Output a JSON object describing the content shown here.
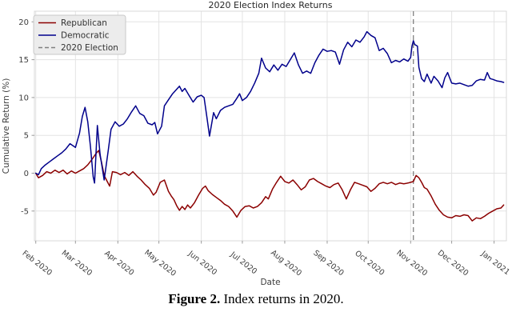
{
  "figure": {
    "caption_label": "Figure 2.",
    "caption_text": " Index returns in 2020."
  },
  "chart_data": {
    "type": "line",
    "title": "2020 Election Index Returns",
    "xlabel": "Date",
    "ylabel": "Cumulative Return (%)",
    "ylim": [
      -8.9,
      21.4
    ],
    "yticks": [
      20,
      15,
      10,
      5,
      0,
      -5
    ],
    "grid": true,
    "legend_position": "upper-left",
    "colors": {
      "republican": "#8B0000",
      "democratic": "#00008B",
      "election_line": "#808080",
      "gridline": "#e3e3e3",
      "axis_text": "#3d3d3d"
    },
    "xticks": [
      {
        "label": "Feb 2020",
        "date": "2020-02-01"
      },
      {
        "label": "Mar 2020",
        "date": "2020-03-01"
      },
      {
        "label": "Apr 2020",
        "date": "2020-04-01"
      },
      {
        "label": "May 2020",
        "date": "2020-05-01"
      },
      {
        "label": "Jun 2020",
        "date": "2020-06-01"
      },
      {
        "label": "Jul 2020",
        "date": "2020-07-01"
      },
      {
        "label": "Aug 2020",
        "date": "2020-08-01"
      },
      {
        "label": "Sep 2020",
        "date": "2020-09-01"
      },
      {
        "label": "Oct 2020",
        "date": "2020-10-01"
      },
      {
        "label": "Nov 2020",
        "date": "2020-11-01"
      },
      {
        "label": "Dec 2020",
        "date": "2020-12-01"
      },
      {
        "label": "Jan 2021",
        "date": "2021-01-01"
      }
    ],
    "election_line": {
      "label": "2020 Election",
      "date": "2020-11-03",
      "style": "dashed"
    },
    "series": [
      {
        "name": "Republican",
        "color": "#8B0000",
        "points": [
          [
            "2020-02-01",
            0.0
          ],
          [
            "2020-02-03",
            -0.6
          ],
          [
            "2020-02-06",
            -0.3
          ],
          [
            "2020-02-09",
            0.2
          ],
          [
            "2020-02-12",
            0.0
          ],
          [
            "2020-02-15",
            0.4
          ],
          [
            "2020-02-18",
            0.1
          ],
          [
            "2020-02-21",
            0.4
          ],
          [
            "2020-02-24",
            -0.1
          ],
          [
            "2020-02-27",
            0.3
          ],
          [
            "2020-03-01",
            0.0
          ],
          [
            "2020-03-04",
            0.3
          ],
          [
            "2020-03-07",
            0.6
          ],
          [
            "2020-03-10",
            1.1
          ],
          [
            "2020-03-13",
            1.8
          ],
          [
            "2020-03-16",
            2.6
          ],
          [
            "2020-03-18",
            3.0
          ],
          [
            "2020-03-20",
            1.5
          ],
          [
            "2020-03-22",
            -0.3
          ],
          [
            "2020-03-24",
            -1.0
          ],
          [
            "2020-03-26",
            -1.7
          ],
          [
            "2020-03-28",
            0.2
          ],
          [
            "2020-03-31",
            0.1
          ],
          [
            "2020-04-03",
            -0.2
          ],
          [
            "2020-04-06",
            0.1
          ],
          [
            "2020-04-09",
            -0.3
          ],
          [
            "2020-04-12",
            0.2
          ],
          [
            "2020-04-15",
            -0.4
          ],
          [
            "2020-04-18",
            -0.9
          ],
          [
            "2020-04-21",
            -1.5
          ],
          [
            "2020-04-24",
            -2.0
          ],
          [
            "2020-04-27",
            -2.9
          ],
          [
            "2020-04-29",
            -2.5
          ],
          [
            "2020-05-02",
            -1.2
          ],
          [
            "2020-05-05",
            -0.9
          ],
          [
            "2020-05-08",
            -2.4
          ],
          [
            "2020-05-10",
            -3.0
          ],
          [
            "2020-05-12",
            -3.5
          ],
          [
            "2020-05-14",
            -4.3
          ],
          [
            "2020-05-16",
            -4.9
          ],
          [
            "2020-05-18",
            -4.4
          ],
          [
            "2020-05-20",
            -4.8
          ],
          [
            "2020-05-22",
            -4.2
          ],
          [
            "2020-05-24",
            -4.6
          ],
          [
            "2020-05-27",
            -3.9
          ],
          [
            "2020-05-30",
            -2.9
          ],
          [
            "2020-06-02",
            -2.0
          ],
          [
            "2020-06-04",
            -1.7
          ],
          [
            "2020-06-06",
            -2.3
          ],
          [
            "2020-06-09",
            -2.8
          ],
          [
            "2020-06-12",
            -3.2
          ],
          [
            "2020-06-15",
            -3.6
          ],
          [
            "2020-06-18",
            -4.1
          ],
          [
            "2020-06-21",
            -4.4
          ],
          [
            "2020-06-24",
            -5.0
          ],
          [
            "2020-06-27",
            -5.8
          ],
          [
            "2020-06-30",
            -4.9
          ],
          [
            "2020-07-03",
            -4.4
          ],
          [
            "2020-07-06",
            -4.3
          ],
          [
            "2020-07-09",
            -4.6
          ],
          [
            "2020-07-12",
            -4.4
          ],
          [
            "2020-07-15",
            -3.9
          ],
          [
            "2020-07-18",
            -3.1
          ],
          [
            "2020-07-20",
            -3.4
          ],
          [
            "2020-07-23",
            -2.1
          ],
          [
            "2020-07-26",
            -1.2
          ],
          [
            "2020-07-29",
            -0.4
          ],
          [
            "2020-08-01",
            -1.1
          ],
          [
            "2020-08-04",
            -1.3
          ],
          [
            "2020-08-07",
            -0.9
          ],
          [
            "2020-08-10",
            -1.5
          ],
          [
            "2020-08-13",
            -2.2
          ],
          [
            "2020-08-16",
            -1.8
          ],
          [
            "2020-08-19",
            -0.9
          ],
          [
            "2020-08-22",
            -0.7
          ],
          [
            "2020-08-25",
            -1.1
          ],
          [
            "2020-08-28",
            -1.4
          ],
          [
            "2020-08-31",
            -1.7
          ],
          [
            "2020-09-03",
            -1.9
          ],
          [
            "2020-09-06",
            -1.5
          ],
          [
            "2020-09-09",
            -1.3
          ],
          [
            "2020-09-12",
            -2.2
          ],
          [
            "2020-09-15",
            -3.4
          ],
          [
            "2020-09-18",
            -2.2
          ],
          [
            "2020-09-21",
            -1.2
          ],
          [
            "2020-09-24",
            -1.4
          ],
          [
            "2020-09-27",
            -1.6
          ],
          [
            "2020-09-30",
            -1.8
          ],
          [
            "2020-10-03",
            -2.4
          ],
          [
            "2020-10-06",
            -2.0
          ],
          [
            "2020-10-09",
            -1.4
          ],
          [
            "2020-10-12",
            -1.2
          ],
          [
            "2020-10-15",
            -1.4
          ],
          [
            "2020-10-18",
            -1.2
          ],
          [
            "2020-10-21",
            -1.5
          ],
          [
            "2020-10-24",
            -1.3
          ],
          [
            "2020-10-27",
            -1.4
          ],
          [
            "2020-10-30",
            -1.3
          ],
          [
            "2020-11-01",
            -1.2
          ],
          [
            "2020-11-03",
            -1.1
          ],
          [
            "2020-11-05",
            -0.3
          ],
          [
            "2020-11-07",
            -0.6
          ],
          [
            "2020-11-09",
            -1.2
          ],
          [
            "2020-11-11",
            -1.9
          ],
          [
            "2020-11-13",
            -2.1
          ],
          [
            "2020-11-16",
            -3.0
          ],
          [
            "2020-11-19",
            -4.1
          ],
          [
            "2020-11-22",
            -4.9
          ],
          [
            "2020-11-25",
            -5.5
          ],
          [
            "2020-11-28",
            -5.8
          ],
          [
            "2020-12-01",
            -5.9
          ],
          [
            "2020-12-04",
            -5.6
          ],
          [
            "2020-12-07",
            -5.7
          ],
          [
            "2020-12-10",
            -5.5
          ],
          [
            "2020-12-13",
            -5.6
          ],
          [
            "2020-12-16",
            -6.3
          ],
          [
            "2020-12-19",
            -5.9
          ],
          [
            "2020-12-22",
            -6.0
          ],
          [
            "2020-12-25",
            -5.7
          ],
          [
            "2020-12-28",
            -5.3
          ],
          [
            "2020-12-31",
            -5.0
          ],
          [
            "2021-01-03",
            -4.7
          ],
          [
            "2021-01-06",
            -4.6
          ],
          [
            "2021-01-08",
            -4.2
          ]
        ]
      },
      {
        "name": "Democratic",
        "color": "#00008B",
        "points": [
          [
            "2020-02-01",
            0.0
          ],
          [
            "2020-02-03",
            -0.2
          ],
          [
            "2020-02-05",
            0.6
          ],
          [
            "2020-02-08",
            1.1
          ],
          [
            "2020-02-11",
            1.5
          ],
          [
            "2020-02-14",
            1.9
          ],
          [
            "2020-02-17",
            2.3
          ],
          [
            "2020-02-20",
            2.7
          ],
          [
            "2020-02-23",
            3.2
          ],
          [
            "2020-02-26",
            3.9
          ],
          [
            "2020-03-01",
            3.4
          ],
          [
            "2020-03-04",
            5.3
          ],
          [
            "2020-03-06",
            7.5
          ],
          [
            "2020-03-08",
            8.7
          ],
          [
            "2020-03-10",
            6.8
          ],
          [
            "2020-03-12",
            3.5
          ],
          [
            "2020-03-14",
            -0.5
          ],
          [
            "2020-03-15",
            -1.3
          ],
          [
            "2020-03-17",
            6.3
          ],
          [
            "2020-03-19",
            2.5
          ],
          [
            "2020-03-22",
            -0.9
          ],
          [
            "2020-03-25",
            3.0
          ],
          [
            "2020-03-27",
            5.8
          ],
          [
            "2020-03-30",
            6.8
          ],
          [
            "2020-04-02",
            6.2
          ],
          [
            "2020-04-05",
            6.5
          ],
          [
            "2020-04-08",
            7.2
          ],
          [
            "2020-04-11",
            8.1
          ],
          [
            "2020-04-14",
            8.9
          ],
          [
            "2020-04-17",
            7.9
          ],
          [
            "2020-04-20",
            7.6
          ],
          [
            "2020-04-23",
            6.6
          ],
          [
            "2020-04-26",
            6.4
          ],
          [
            "2020-04-28",
            6.7
          ],
          [
            "2020-04-30",
            5.2
          ],
          [
            "2020-05-03",
            6.2
          ],
          [
            "2020-05-05",
            8.9
          ],
          [
            "2020-05-08",
            9.7
          ],
          [
            "2020-05-11",
            10.5
          ],
          [
            "2020-05-14",
            11.1
          ],
          [
            "2020-05-16",
            11.5
          ],
          [
            "2020-05-18",
            10.8
          ],
          [
            "2020-05-20",
            11.2
          ],
          [
            "2020-05-23",
            10.3
          ],
          [
            "2020-05-26",
            9.4
          ],
          [
            "2020-05-29",
            10.1
          ],
          [
            "2020-06-01",
            10.3
          ],
          [
            "2020-06-03",
            10.0
          ],
          [
            "2020-06-05",
            7.5
          ],
          [
            "2020-06-07",
            4.9
          ],
          [
            "2020-06-10",
            8.0
          ],
          [
            "2020-06-12",
            7.2
          ],
          [
            "2020-06-15",
            8.3
          ],
          [
            "2020-06-18",
            8.7
          ],
          [
            "2020-06-21",
            8.9
          ],
          [
            "2020-06-24",
            9.1
          ],
          [
            "2020-06-27",
            9.9
          ],
          [
            "2020-06-29",
            10.5
          ],
          [
            "2020-07-01",
            9.6
          ],
          [
            "2020-07-04",
            10.0
          ],
          [
            "2020-07-07",
            10.8
          ],
          [
            "2020-07-10",
            11.9
          ],
          [
            "2020-07-13",
            13.2
          ],
          [
            "2020-07-15",
            15.2
          ],
          [
            "2020-07-18",
            13.9
          ],
          [
            "2020-07-21",
            13.4
          ],
          [
            "2020-07-24",
            14.3
          ],
          [
            "2020-07-27",
            13.6
          ],
          [
            "2020-07-30",
            14.4
          ],
          [
            "2020-08-02",
            14.1
          ],
          [
            "2020-08-05",
            15.0
          ],
          [
            "2020-08-08",
            15.9
          ],
          [
            "2020-08-11",
            14.3
          ],
          [
            "2020-08-14",
            13.2
          ],
          [
            "2020-08-17",
            13.5
          ],
          [
            "2020-08-20",
            13.2
          ],
          [
            "2020-08-23",
            14.6
          ],
          [
            "2020-08-26",
            15.6
          ],
          [
            "2020-08-29",
            16.4
          ],
          [
            "2020-09-01",
            16.1
          ],
          [
            "2020-09-04",
            16.2
          ],
          [
            "2020-09-07",
            16.0
          ],
          [
            "2020-09-10",
            14.4
          ],
          [
            "2020-09-13",
            16.3
          ],
          [
            "2020-09-16",
            17.3
          ],
          [
            "2020-09-19",
            16.7
          ],
          [
            "2020-09-22",
            17.6
          ],
          [
            "2020-09-25",
            17.3
          ],
          [
            "2020-09-28",
            18.0
          ],
          [
            "2020-09-30",
            18.7
          ],
          [
            "2020-10-03",
            18.2
          ],
          [
            "2020-10-06",
            17.9
          ],
          [
            "2020-10-09",
            16.2
          ],
          [
            "2020-10-12",
            16.5
          ],
          [
            "2020-10-15",
            15.8
          ],
          [
            "2020-10-18",
            14.6
          ],
          [
            "2020-10-21",
            14.9
          ],
          [
            "2020-10-24",
            14.7
          ],
          [
            "2020-10-27",
            15.1
          ],
          [
            "2020-10-30",
            14.8
          ],
          [
            "2020-11-01",
            15.3
          ],
          [
            "2020-11-02",
            16.8
          ],
          [
            "2020-11-03",
            17.5
          ],
          [
            "2020-11-04",
            17.0
          ],
          [
            "2020-11-06",
            16.8
          ],
          [
            "2020-11-07",
            14.0
          ],
          [
            "2020-11-09",
            12.5
          ],
          [
            "2020-11-11",
            12.1
          ],
          [
            "2020-11-13",
            13.1
          ],
          [
            "2020-11-16",
            11.9
          ],
          [
            "2020-11-18",
            12.8
          ],
          [
            "2020-11-21",
            12.2
          ],
          [
            "2020-11-24",
            11.3
          ],
          [
            "2020-11-26",
            12.6
          ],
          [
            "2020-11-28",
            13.3
          ],
          [
            "2020-12-01",
            11.9
          ],
          [
            "2020-12-04",
            11.8
          ],
          [
            "2020-12-07",
            11.9
          ],
          [
            "2020-12-10",
            11.7
          ],
          [
            "2020-12-13",
            11.5
          ],
          [
            "2020-12-16",
            11.6
          ],
          [
            "2020-12-19",
            12.2
          ],
          [
            "2020-12-22",
            12.4
          ],
          [
            "2020-12-25",
            12.3
          ],
          [
            "2020-12-27",
            13.3
          ],
          [
            "2020-12-29",
            12.5
          ],
          [
            "2020-12-31",
            12.4
          ],
          [
            "2021-01-03",
            12.2
          ],
          [
            "2021-01-06",
            12.1
          ],
          [
            "2021-01-08",
            12.0
          ]
        ]
      }
    ]
  }
}
